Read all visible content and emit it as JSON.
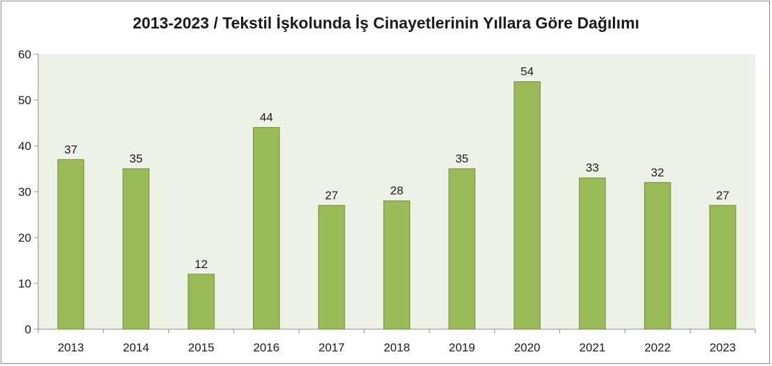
{
  "chart_data": {
    "type": "bar",
    "title": "2013-2023 / Tekstil İşkolunda İş Cinayetlerinin Yıllara Göre Dağılımı",
    "categories": [
      "2013",
      "2014",
      "2015",
      "2016",
      "2017",
      "2018",
      "2019",
      "2020",
      "2021",
      "2022",
      "2023"
    ],
    "values": [
      37,
      35,
      12,
      44,
      27,
      28,
      35,
      54,
      33,
      32,
      27
    ],
    "ylim": [
      0,
      60
    ],
    "yticks": [
      "0",
      "10",
      "20",
      "30",
      "40",
      "50",
      "60"
    ],
    "xlabel": "",
    "ylabel": "",
    "grid": false,
    "colors": {
      "bar_fill": "#9bbb59",
      "bar_stroke": "#6e8b3d",
      "plot_background": "#eef1e6",
      "axis": "#8c8c8c"
    }
  }
}
